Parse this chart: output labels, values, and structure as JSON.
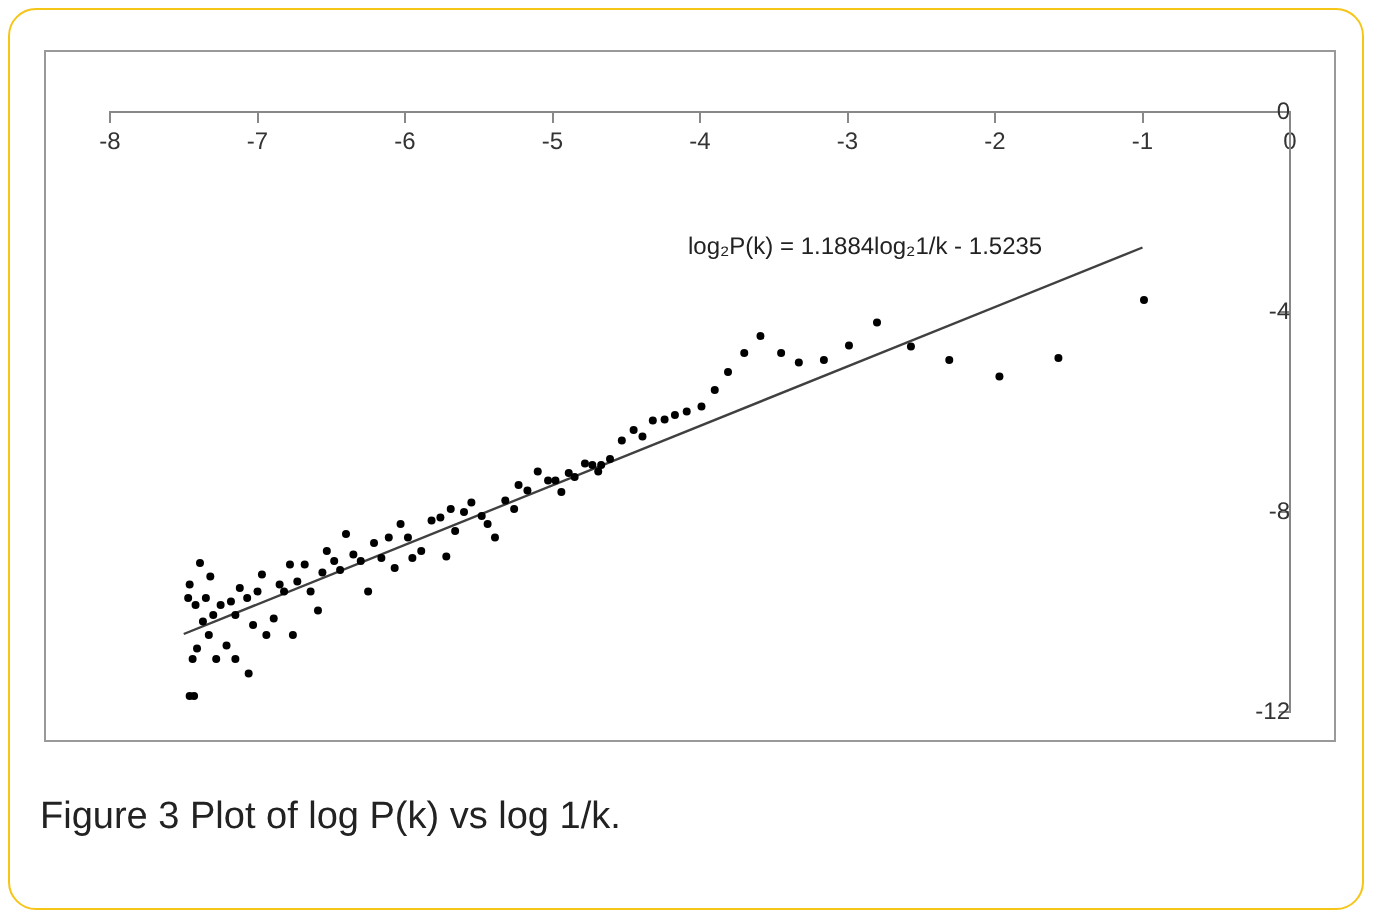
{
  "chart_data": {
    "type": "scatter",
    "xlim": [
      -8,
      0
    ],
    "xticks": [
      -8,
      -7,
      -6,
      -5,
      -4,
      -3,
      -2,
      -1,
      0
    ],
    "ylim": [
      -12,
      0
    ],
    "yticks": [
      -12,
      -8,
      -4,
      0
    ],
    "grid": false,
    "legend": false,
    "marker": "circle",
    "annotations": [
      "log₂P(k) = 1.1884log₂1/k - 1.5235",
      "Figure 3 Plot of log P(k) vs log 1/k."
    ],
    "series": [
      {
        "color": "#000000",
        "x": [
          -0.99,
          -1.57,
          -1.97,
          -2.31,
          -2.57,
          -2.8,
          -2.99,
          -3.16,
          -3.33,
          -3.45,
          -3.59,
          -3.7,
          -3.81,
          -3.9,
          -3.99,
          -4.09,
          -4.17,
          -4.24,
          -4.32,
          -4.39,
          -4.45,
          -4.53,
          -4.61,
          -4.67,
          -4.69,
          -4.73,
          -4.78,
          -4.85,
          -4.89,
          -4.94,
          -4.98,
          -5.03,
          -5.1,
          -5.17,
          -5.23,
          -5.26,
          -5.32,
          -5.39,
          -5.44,
          -5.48,
          -5.55,
          -5.6,
          -5.66,
          -5.69,
          -5.72,
          -5.76,
          -5.82,
          -5.89,
          -5.95,
          -5.98,
          -6.03,
          -6.07,
          -6.11,
          -6.16,
          -6.21,
          -6.25,
          -6.3,
          -6.35,
          -6.4,
          -6.44,
          -6.48,
          -6.53,
          -6.56,
          -6.59,
          -6.64,
          -6.68,
          -6.73,
          -6.76,
          -6.78,
          -6.82,
          -6.85,
          -6.89,
          -6.94,
          -6.97,
          -7.0,
          -7.03,
          -7.06,
          -7.07,
          -7.12,
          -7.15,
          -7.15,
          -7.18,
          -7.21,
          -7.25,
          -7.28,
          -7.3,
          -7.32,
          -7.33,
          -7.35,
          -7.37,
          -7.39,
          -7.41,
          -7.42,
          -7.43,
          -7.44,
          -7.46,
          -7.46,
          -7.47
        ],
        "values": [
          -3.76,
          -4.92,
          -5.29,
          -4.96,
          -4.69,
          -4.21,
          -4.67,
          -4.96,
          -5.01,
          -4.82,
          -4.48,
          -4.82,
          -5.2,
          -5.56,
          -5.89,
          -5.99,
          -6.06,
          -6.15,
          -6.17,
          -6.49,
          -6.36,
          -6.57,
          -6.94,
          -7.06,
          -7.19,
          -7.06,
          -7.03,
          -7.3,
          -7.22,
          -7.6,
          -7.37,
          -7.37,
          -7.19,
          -7.57,
          -7.46,
          -7.94,
          -7.77,
          -8.51,
          -8.24,
          -8.08,
          -7.81,
          -8.0,
          -8.38,
          -7.94,
          -8.89,
          -8.11,
          -8.17,
          -8.78,
          -8.92,
          -8.51,
          -8.24,
          -9.12,
          -8.51,
          -8.92,
          -8.62,
          -9.59,
          -8.98,
          -8.85,
          -8.44,
          -9.16,
          -8.98,
          -8.78,
          -9.21,
          -9.97,
          -9.59,
          -9.05,
          -9.39,
          -10.46,
          -9.05,
          -9.59,
          -9.45,
          -10.13,
          -10.46,
          -9.25,
          -9.59,
          -10.26,
          -11.23,
          -9.72,
          -9.52,
          -10.06,
          -10.94,
          -9.79,
          -10.67,
          -9.86,
          -10.94,
          -10.06,
          -9.29,
          -10.46,
          -9.72,
          -10.19,
          -9.02,
          -10.73,
          -9.86,
          -11.68,
          -10.94,
          -9.45,
          -11.68,
          -9.72
        ]
      },
      {
        "type": "line",
        "color": "#404040",
        "marker": "none",
        "x": [
          -7.5,
          -1
        ],
        "values": [
          -10.44,
          -2.71
        ]
      }
    ]
  }
}
